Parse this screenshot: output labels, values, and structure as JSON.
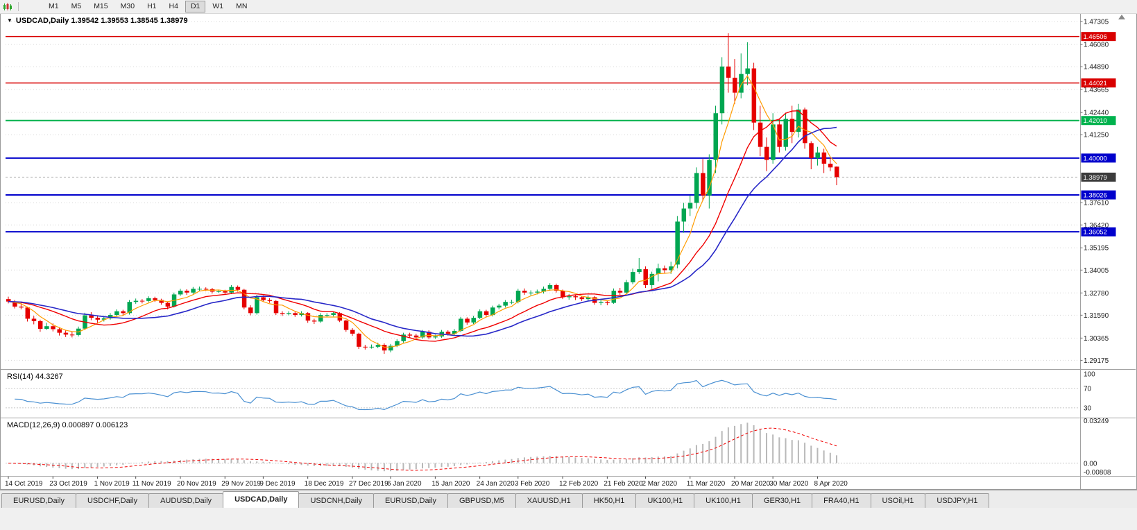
{
  "toolbar": {
    "timeframes": [
      "M1",
      "M5",
      "M15",
      "M30",
      "H1",
      "H4",
      "D1",
      "W1",
      "MN"
    ],
    "active": "D1"
  },
  "chart": {
    "collapse_arrow": "▼",
    "title": "USDCAD,Daily 1.39542 1.39553 1.38545 1.38979"
  },
  "chart_data": {
    "type": "candlestick",
    "symbol": "USDCAD",
    "period": "Daily",
    "ohlc_display": {
      "open": 1.39542,
      "high": 1.39553,
      "low": 1.38545,
      "close": 1.38979
    },
    "price_domain": [
      1.2878,
      1.4757
    ],
    "price_ticks": [
      1.47305,
      1.4608,
      1.4489,
      1.43665,
      1.4244,
      1.4125,
      1.3761,
      1.3642,
      1.35195,
      1.34005,
      1.3278,
      1.3159,
      1.30365,
      1.29175
    ],
    "horizontal_lines": [
      {
        "price": 1.46506,
        "label": "1.46506",
        "color": "#d90000",
        "width": 1.5
      },
      {
        "price": 1.44021,
        "label": "1.44021",
        "color": "#d90000",
        "width": 1.5
      },
      {
        "price": 1.4201,
        "label": "1.42010",
        "color": "#00b24d",
        "width": 2
      },
      {
        "price": 1.4,
        "label": "1.40000",
        "color": "#0000cc",
        "width": 2
      },
      {
        "price": 1.38026,
        "label": "1.38026",
        "color": "#0000cc",
        "width": 2
      },
      {
        "price": 1.36052,
        "label": "1.36052",
        "color": "#0000cc",
        "width": 2
      }
    ],
    "current_price": {
      "value": 1.38979,
      "label": "1.38979",
      "badge_color": "#3c3c3c"
    },
    "time_labels": [
      {
        "text": "14 Oct 2019",
        "index": 0
      },
      {
        "text": "23 Oct 2019",
        "index": 7
      },
      {
        "text": "1 Nov 2019",
        "index": 14
      },
      {
        "text": "11 Nov 2019",
        "index": 20
      },
      {
        "text": "20 Nov 2019",
        "index": 27
      },
      {
        "text": "29 Nov 2019",
        "index": 34
      },
      {
        "text": "9 Dec 2019",
        "index": 40
      },
      {
        "text": "18 Dec 2019",
        "index": 47
      },
      {
        "text": "27 Dec 2019",
        "index": 54
      },
      {
        "text": "6 Jan 2020",
        "index": 60
      },
      {
        "text": "15 Jan 2020",
        "index": 67
      },
      {
        "text": "24 Jan 2020",
        "index": 74
      },
      {
        "text": "3 Feb 2020",
        "index": 80
      },
      {
        "text": "12 Feb 2020",
        "index": 87
      },
      {
        "text": "21 Feb 2020",
        "index": 94
      },
      {
        "text": "2 Mar 2020",
        "index": 100
      },
      {
        "text": "11 Mar 2020",
        "index": 107
      },
      {
        "text": "20 Mar 2020",
        "index": 114
      },
      {
        "text": "30 Mar 2020",
        "index": 120
      },
      {
        "text": "8 Apr 2020",
        "index": 127
      }
    ],
    "candles": [
      [
        1.3245,
        1.3258,
        1.3222,
        1.3232
      ],
      [
        1.3232,
        1.324,
        1.3195,
        1.3205
      ],
      [
        1.3205,
        1.3232,
        1.319,
        1.32
      ],
      [
        1.32,
        1.3205,
        1.3125,
        1.314
      ],
      [
        1.314,
        1.3155,
        1.311,
        1.3127
      ],
      [
        1.3127,
        1.3135,
        1.307,
        1.3086
      ],
      [
        1.3086,
        1.3118,
        1.308,
        1.31
      ],
      [
        1.31,
        1.3115,
        1.3072,
        1.3084
      ],
      [
        1.3084,
        1.3095,
        1.305,
        1.3065
      ],
      [
        1.3065,
        1.308,
        1.3042,
        1.3055
      ],
      [
        1.3055,
        1.3072,
        1.304,
        1.3053
      ],
      [
        1.3053,
        1.3098,
        1.3045,
        1.3087
      ],
      [
        1.3087,
        1.3172,
        1.308,
        1.3158
      ],
      [
        1.3158,
        1.3175,
        1.3132,
        1.3145
      ],
      [
        1.3145,
        1.3158,
        1.3118,
        1.3135
      ],
      [
        1.3135,
        1.3155,
        1.3125,
        1.3142
      ],
      [
        1.3142,
        1.317,
        1.3135,
        1.316
      ],
      [
        1.316,
        1.319,
        1.315,
        1.318
      ],
      [
        1.318,
        1.3188,
        1.3158,
        1.317
      ],
      [
        1.317,
        1.324,
        1.3162,
        1.323
      ],
      [
        1.323,
        1.3248,
        1.322,
        1.3236
      ],
      [
        1.3236,
        1.3245,
        1.3222,
        1.3235
      ],
      [
        1.3235,
        1.326,
        1.3228,
        1.325
      ],
      [
        1.325,
        1.3258,
        1.323,
        1.324
      ],
      [
        1.324,
        1.3247,
        1.3215,
        1.3225
      ],
      [
        1.3225,
        1.3232,
        1.319,
        1.3205
      ],
      [
        1.3205,
        1.328,
        1.32,
        1.327
      ],
      [
        1.327,
        1.33,
        1.3262,
        1.329
      ],
      [
        1.329,
        1.3298,
        1.3268,
        1.328
      ],
      [
        1.328,
        1.331,
        1.3272,
        1.33
      ],
      [
        1.33,
        1.3312,
        1.329,
        1.33
      ],
      [
        1.33,
        1.3308,
        1.3288,
        1.3298
      ],
      [
        1.3298,
        1.3305,
        1.3275,
        1.3285
      ],
      [
        1.3285,
        1.3296,
        1.3278,
        1.3287
      ],
      [
        1.3287,
        1.3295,
        1.327,
        1.328
      ],
      [
        1.328,
        1.332,
        1.3272,
        1.331
      ],
      [
        1.331,
        1.3318,
        1.3285,
        1.3295
      ],
      [
        1.3295,
        1.33,
        1.319,
        1.32
      ],
      [
        1.32,
        1.3212,
        1.3158,
        1.317
      ],
      [
        1.317,
        1.3268,
        1.3162,
        1.3255
      ],
      [
        1.3255,
        1.3265,
        1.323,
        1.324
      ],
      [
        1.324,
        1.325,
        1.3225,
        1.3235
      ],
      [
        1.3235,
        1.324,
        1.316,
        1.317
      ],
      [
        1.317,
        1.318,
        1.3155,
        1.3165
      ],
      [
        1.3165,
        1.318,
        1.3158,
        1.317
      ],
      [
        1.317,
        1.3178,
        1.315,
        1.316
      ],
      [
        1.316,
        1.318,
        1.3152,
        1.317
      ],
      [
        1.317,
        1.3175,
        1.3118,
        1.313
      ],
      [
        1.313,
        1.314,
        1.3112,
        1.3125
      ],
      [
        1.3125,
        1.317,
        1.3118,
        1.316
      ],
      [
        1.316,
        1.317,
        1.315,
        1.316
      ],
      [
        1.316,
        1.3178,
        1.3152,
        1.317
      ],
      [
        1.317,
        1.3175,
        1.3122,
        1.313
      ],
      [
        1.313,
        1.3135,
        1.307,
        1.308
      ],
      [
        1.308,
        1.309,
        1.3048,
        1.306
      ],
      [
        1.306,
        1.3065,
        1.2978,
        1.299
      ],
      [
        1.299,
        1.3,
        1.2975,
        1.2988
      ],
      [
        1.2988,
        1.3002,
        1.298,
        1.299
      ],
      [
        1.299,
        1.3012,
        1.2982,
        1.3
      ],
      [
        1.3,
        1.3008,
        1.2952,
        1.297
      ],
      [
        1.297,
        1.3005,
        1.296,
        1.2995
      ],
      [
        1.2995,
        1.303,
        1.2988,
        1.302
      ],
      [
        1.302,
        1.3065,
        1.3012,
        1.3055
      ],
      [
        1.3055,
        1.3065,
        1.304,
        1.305
      ],
      [
        1.305,
        1.306,
        1.303,
        1.304
      ],
      [
        1.304,
        1.308,
        1.3032,
        1.307
      ],
      [
        1.307,
        1.3078,
        1.303,
        1.304
      ],
      [
        1.304,
        1.3055,
        1.3032,
        1.3045
      ],
      [
        1.3045,
        1.308,
        1.3038,
        1.307
      ],
      [
        1.307,
        1.3078,
        1.305,
        1.306
      ],
      [
        1.306,
        1.3085,
        1.3052,
        1.3075
      ],
      [
        1.3075,
        1.315,
        1.3068,
        1.314
      ],
      [
        1.314,
        1.3148,
        1.3108,
        1.312
      ],
      [
        1.312,
        1.3155,
        1.3112,
        1.3145
      ],
      [
        1.3145,
        1.319,
        1.3138,
        1.318
      ],
      [
        1.318,
        1.3188,
        1.3148,
        1.316
      ],
      [
        1.316,
        1.321,
        1.3152,
        1.32
      ],
      [
        1.32,
        1.322,
        1.319,
        1.321
      ],
      [
        1.321,
        1.324,
        1.32,
        1.323
      ],
      [
        1.323,
        1.3242,
        1.3218,
        1.323
      ],
      [
        1.323,
        1.33,
        1.3222,
        1.329
      ],
      [
        1.329,
        1.3302,
        1.3268,
        1.328
      ],
      [
        1.328,
        1.3292,
        1.3265,
        1.328
      ],
      [
        1.328,
        1.3296,
        1.327,
        1.3285
      ],
      [
        1.3285,
        1.3312,
        1.3275,
        1.33
      ],
      [
        1.33,
        1.333,
        1.329,
        1.332
      ],
      [
        1.332,
        1.3328,
        1.328,
        1.329
      ],
      [
        1.329,
        1.3296,
        1.3245,
        1.3255
      ],
      [
        1.3255,
        1.3272,
        1.3242,
        1.326
      ],
      [
        1.326,
        1.3268,
        1.324,
        1.3255
      ],
      [
        1.3255,
        1.3262,
        1.3235,
        1.3245
      ],
      [
        1.3245,
        1.3265,
        1.3238,
        1.3255
      ],
      [
        1.3255,
        1.3262,
        1.3215,
        1.3225
      ],
      [
        1.3225,
        1.324,
        1.3212,
        1.323
      ],
      [
        1.323,
        1.3238,
        1.3212,
        1.3225
      ],
      [
        1.3225,
        1.3302,
        1.322,
        1.329
      ],
      [
        1.329,
        1.3305,
        1.3268,
        1.328
      ],
      [
        1.328,
        1.3348,
        1.3272,
        1.3335
      ],
      [
        1.3335,
        1.3408,
        1.3325,
        1.339
      ],
      [
        1.339,
        1.3465,
        1.338,
        1.3405
      ],
      [
        1.3405,
        1.342,
        1.3305,
        1.332
      ],
      [
        1.332,
        1.3392,
        1.33,
        1.338
      ],
      [
        1.338,
        1.3435,
        1.334,
        1.341
      ],
      [
        1.341,
        1.3425,
        1.3385,
        1.34
      ],
      [
        1.34,
        1.3445,
        1.338,
        1.342
      ],
      [
        1.343,
        1.369,
        1.341,
        1.366
      ],
      [
        1.366,
        1.376,
        1.36,
        1.373
      ],
      [
        1.373,
        1.38,
        1.369,
        1.376
      ],
      [
        1.376,
        1.395,
        1.373,
        1.392
      ],
      [
        1.392,
        1.3995,
        1.377,
        1.38
      ],
      [
        1.38,
        1.402,
        1.373,
        1.399
      ],
      [
        1.399,
        1.428,
        1.392,
        1.424
      ],
      [
        1.424,
        1.454,
        1.418,
        1.449
      ],
      [
        1.449,
        1.4668,
        1.435,
        1.443
      ],
      [
        1.443,
        1.453,
        1.429,
        1.435
      ],
      [
        1.435,
        1.456,
        1.432,
        1.445
      ],
      [
        1.445,
        1.462,
        1.439,
        1.448
      ],
      [
        1.448,
        1.451,
        1.415,
        1.419
      ],
      [
        1.419,
        1.428,
        1.401,
        1.406
      ],
      [
        1.406,
        1.411,
        1.393,
        1.399
      ],
      [
        1.399,
        1.424,
        1.397,
        1.418
      ],
      [
        1.418,
        1.421,
        1.403,
        1.406
      ],
      [
        1.406,
        1.424,
        1.404,
        1.421
      ],
      [
        1.421,
        1.428,
        1.408,
        1.414
      ],
      [
        1.414,
        1.429,
        1.411,
        1.426
      ],
      [
        1.426,
        1.427,
        1.405,
        1.408
      ],
      [
        1.408,
        1.409,
        1.394,
        1.4
      ],
      [
        1.4,
        1.406,
        1.396,
        1.403
      ],
      [
        1.403,
        1.405,
        1.392,
        1.397
      ],
      [
        1.397,
        1.4,
        1.393,
        1.395
      ],
      [
        1.39542,
        1.39553,
        1.38545,
        1.38979
      ]
    ],
    "moving_averages": [
      {
        "name": "ma-fast",
        "period": 5,
        "color": "#ff9c00",
        "width": 1.2
      },
      {
        "name": "ma-mid",
        "period": 13,
        "color": "#f00000",
        "width": 1.4
      },
      {
        "name": "ma-slow",
        "period": 21,
        "color": "#2828c8",
        "width": 1.6
      }
    ],
    "indicators": {
      "rsi": {
        "label": "RSI(14) 44.3267",
        "period": 14,
        "current": 44.3267,
        "axis_labels": [
          100,
          70,
          30
        ],
        "levels": [
          70,
          30
        ],
        "color": "#4a90d2"
      },
      "macd": {
        "label": "MACD(12,26,9) 0.000897 0.006123",
        "fast": 12,
        "slow": 26,
        "signal_period": 9,
        "current_macd": 0.000897,
        "current_signal": 0.006123,
        "axis_labels": [
          {
            "value": 0.03249,
            "text": "0.03249"
          },
          {
            "value": 0,
            "text": "0.00"
          },
          {
            "value": -0.00808,
            "text": "-0.00808"
          }
        ],
        "histogram_color": "#b8b8b8",
        "signal_color": "#f00000"
      }
    },
    "colors": {
      "up": "#00a651",
      "down": "#e60000",
      "grid": "#d6d6d6",
      "background": "#ffffff",
      "axis_text": "#1a1a1a",
      "separator": "#a0a0a0",
      "bid_line": "#b8b8b8"
    }
  },
  "tabs": [
    {
      "label": "EURUSD,Daily",
      "active": false
    },
    {
      "label": "USDCHF,Daily",
      "active": false
    },
    {
      "label": "AUDUSD,Daily",
      "active": false
    },
    {
      "label": "USDCAD,Daily",
      "active": true
    },
    {
      "label": "USDCNH,Daily",
      "active": false
    },
    {
      "label": "EURUSD,Daily",
      "active": false
    },
    {
      "label": "GBPUSD,M5",
      "active": false
    },
    {
      "label": "XAUUSD,H1",
      "active": false
    },
    {
      "label": "HK50,H1",
      "active": false
    },
    {
      "label": "UK100,H1",
      "active": false
    },
    {
      "label": "UK100,H1",
      "active": false
    },
    {
      "label": "GER30,H1",
      "active": false
    },
    {
      "label": "FRA40,H1",
      "active": false
    },
    {
      "label": "USOil,H1",
      "active": false
    },
    {
      "label": "USDJPY,H1",
      "active": false
    }
  ]
}
